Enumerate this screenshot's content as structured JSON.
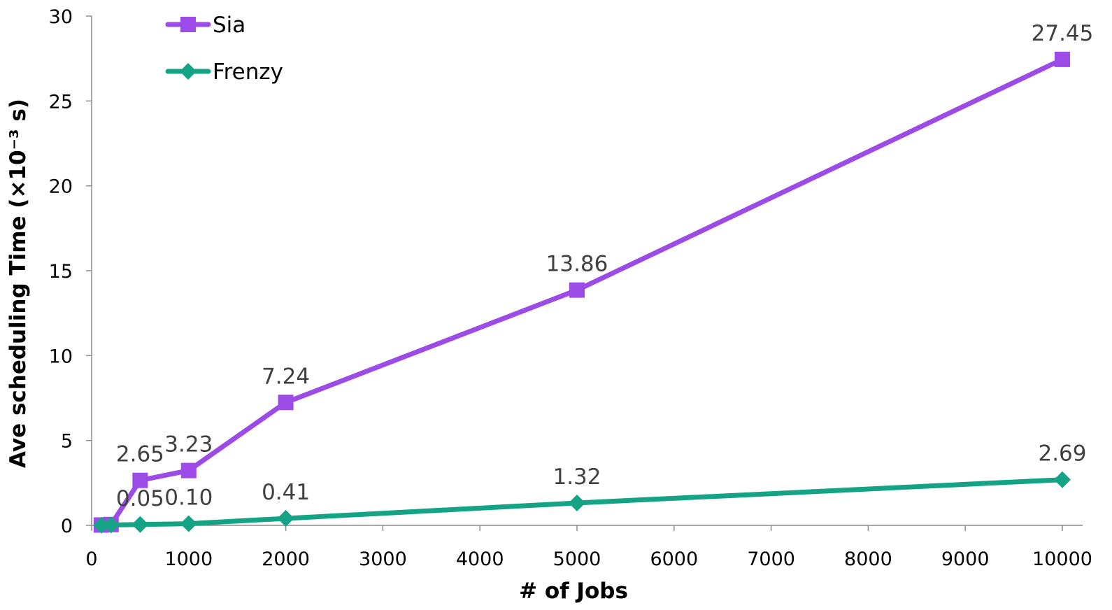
{
  "chart_data": {
    "type": "line",
    "title": "",
    "xlabel": "# of Jobs",
    "ylabel": "Ave scheduling Time (×10⁻³ s)",
    "xlim": [
      0,
      10000
    ],
    "ylim": [
      0,
      30
    ],
    "xticks": [
      0,
      1000,
      2000,
      3000,
      4000,
      5000,
      6000,
      7000,
      8000,
      9000,
      10000
    ],
    "yticks": [
      0,
      5,
      10,
      15,
      20,
      25,
      30
    ],
    "grid": false,
    "legend_position": "top-left",
    "series": [
      {
        "name": "Sia",
        "color": "#9c4be6",
        "marker": "square",
        "x": [
          100,
          200,
          500,
          1000,
          2000,
          5000,
          10000
        ],
        "y": [
          0.02,
          0.05,
          2.65,
          3.23,
          7.24,
          13.86,
          27.45
        ],
        "labels": [
          "",
          "",
          "2.65",
          "3.23",
          "7.24",
          "13.86",
          "27.45"
        ]
      },
      {
        "name": "Frenzy",
        "color": "#14a385",
        "marker": "diamond",
        "x": [
          100,
          200,
          500,
          1000,
          2000,
          5000,
          10000
        ],
        "y": [
          0.01,
          0.02,
          0.05,
          0.1,
          0.41,
          1.32,
          2.69
        ],
        "labels": [
          "",
          "",
          "0.05",
          "0.10",
          "0.41",
          "1.32",
          "2.69"
        ]
      }
    ]
  }
}
